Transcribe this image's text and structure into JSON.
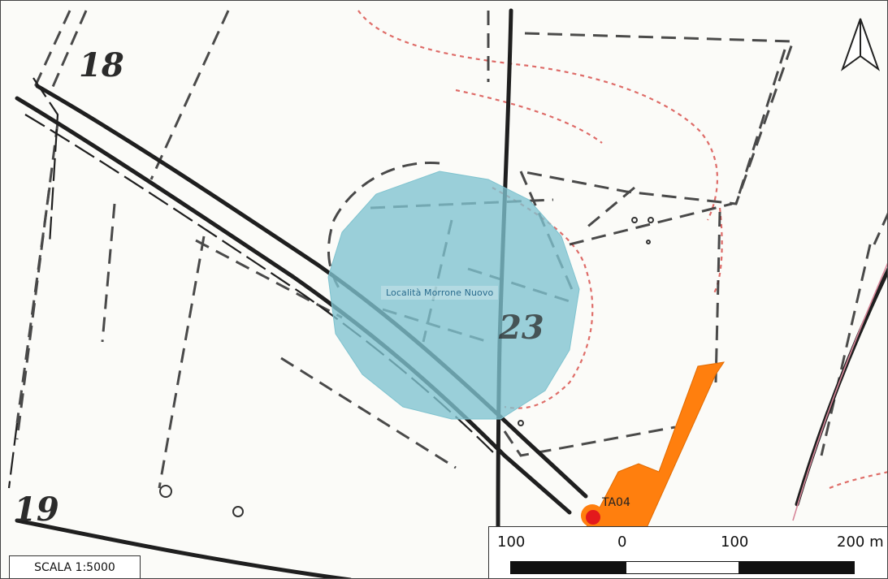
{
  "map": {
    "area_label": "Località Morrone Nuovo",
    "site_label": "TA04",
    "parcel_numbers": [
      "18",
      "19",
      "23"
    ],
    "colors": {
      "area_fill": "#7fc3cf",
      "site_fill": "#ff7f0e",
      "site_point": "#e31a1c",
      "boundary_red": "#d9534f",
      "lines": "#2b2b2b"
    }
  },
  "scale": {
    "ratio_label": "SCALA 1:5000",
    "ticks": [
      "100",
      "0",
      "100",
      "200 m"
    ]
  },
  "north_arrow": {
    "icon": "north-arrow-icon"
  }
}
